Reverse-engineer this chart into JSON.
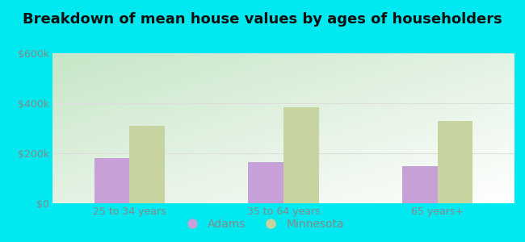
{
  "title": "Breakdown of mean house values by ages of householders",
  "categories": [
    "25 to 34 years",
    "35 to 64 years",
    "65 years+"
  ],
  "adams_values": [
    180000,
    165000,
    150000
  ],
  "minnesota_values": [
    310000,
    385000,
    330000
  ],
  "adams_color": "#c8a0d8",
  "minnesota_color": "#c8d4a0",
  "ylim": [
    0,
    600000
  ],
  "yticks": [
    0,
    200000,
    400000,
    600000
  ],
  "ytick_labels": [
    "$0",
    "$200k",
    "$400k",
    "$600k"
  ],
  "legend_labels": [
    "Adams",
    "Minnesota"
  ],
  "bar_width": 0.32,
  "background_outer": "#00e8f0",
  "grid_color": "#dddddd",
  "title_fontsize": 13,
  "axis_fontsize": 9,
  "legend_fontsize": 10,
  "tick_color": "#888888"
}
